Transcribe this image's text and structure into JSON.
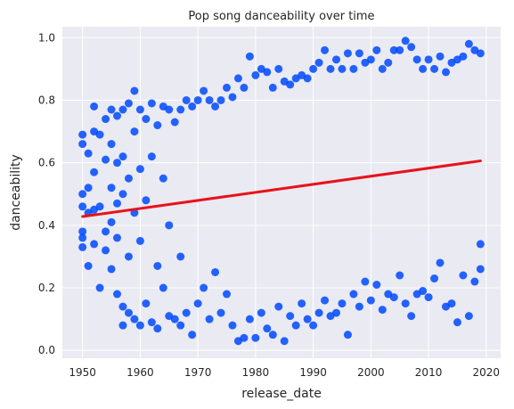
{
  "chart_data": {
    "type": "scatter",
    "title": "Pop song danceability over time",
    "xlabel": "release_date",
    "ylabel": "danceability",
    "xlim": [
      1946.5,
      2022.5
    ],
    "ylim": [
      -0.025,
      1.035
    ],
    "xticks": [
      1950,
      1960,
      1970,
      1980,
      1990,
      2000,
      2010,
      2020
    ],
    "xtick_labels": [
      "1950",
      "1960",
      "1970",
      "1980",
      "1990",
      "2000",
      "2010",
      "2020"
    ],
    "yticks": [
      0.0,
      0.2,
      0.4,
      0.6,
      0.8,
      1.0
    ],
    "ytick_labels": [
      "0.0",
      "0.2",
      "0.4",
      "0.6",
      "0.8",
      "1.0"
    ],
    "grid": true,
    "background": "#eaeaf2",
    "point_color": "#0049ff",
    "line_color": "#e8121a",
    "regression_line": {
      "x": [
        1950,
        2019
      ],
      "y": [
        0.428,
        0.606
      ]
    },
    "points": [
      [
        1950,
        0.69
      ],
      [
        1950,
        0.66
      ],
      [
        1950,
        0.5
      ],
      [
        1950,
        0.46
      ],
      [
        1950,
        0.38
      ],
      [
        1950,
        0.36
      ],
      [
        1950,
        0.33
      ],
      [
        1951,
        0.63
      ],
      [
        1951,
        0.52
      ],
      [
        1951,
        0.44
      ],
      [
        1951,
        0.27
      ],
      [
        1952,
        0.78
      ],
      [
        1952,
        0.7
      ],
      [
        1952,
        0.57
      ],
      [
        1952,
        0.45
      ],
      [
        1952,
        0.34
      ],
      [
        1953,
        0.69
      ],
      [
        1953,
        0.46
      ],
      [
        1953,
        0.2
      ],
      [
        1954,
        0.74
      ],
      [
        1954,
        0.61
      ],
      [
        1954,
        0.38
      ],
      [
        1954,
        0.32
      ],
      [
        1955,
        0.77
      ],
      [
        1955,
        0.66
      ],
      [
        1955,
        0.52
      ],
      [
        1955,
        0.41
      ],
      [
        1955,
        0.26
      ],
      [
        1956,
        0.75
      ],
      [
        1956,
        0.6
      ],
      [
        1956,
        0.47
      ],
      [
        1956,
        0.36
      ],
      [
        1956,
        0.18
      ],
      [
        1957,
        0.77
      ],
      [
        1957,
        0.62
      ],
      [
        1957,
        0.5
      ],
      [
        1957,
        0.14
      ],
      [
        1957,
        0.08
      ],
      [
        1958,
        0.79
      ],
      [
        1958,
        0.55
      ],
      [
        1958,
        0.3
      ],
      [
        1958,
        0.12
      ],
      [
        1959,
        0.83
      ],
      [
        1959,
        0.7
      ],
      [
        1959,
        0.44
      ],
      [
        1959,
        0.1
      ],
      [
        1960,
        0.77
      ],
      [
        1960,
        0.58
      ],
      [
        1960,
        0.35
      ],
      [
        1960,
        0.08
      ],
      [
        1961,
        0.74
      ],
      [
        1961,
        0.48
      ],
      [
        1961,
        0.15
      ],
      [
        1962,
        0.79
      ],
      [
        1962,
        0.62
      ],
      [
        1962,
        0.09
      ],
      [
        1963,
        0.72
      ],
      [
        1963,
        0.27
      ],
      [
        1963,
        0.07
      ],
      [
        1964,
        0.78
      ],
      [
        1964,
        0.55
      ],
      [
        1964,
        0.2
      ],
      [
        1965,
        0.77
      ],
      [
        1965,
        0.4
      ],
      [
        1965,
        0.11
      ],
      [
        1966,
        0.73
      ],
      [
        1966,
        0.1
      ],
      [
        1967,
        0.77
      ],
      [
        1967,
        0.3
      ],
      [
        1967,
        0.08
      ],
      [
        1968,
        0.8
      ],
      [
        1968,
        0.12
      ],
      [
        1969,
        0.78
      ],
      [
        1969,
        0.05
      ],
      [
        1970,
        0.8
      ],
      [
        1970,
        0.15
      ],
      [
        1971,
        0.83
      ],
      [
        1971,
        0.2
      ],
      [
        1972,
        0.8
      ],
      [
        1972,
        0.1
      ],
      [
        1973,
        0.78
      ],
      [
        1973,
        0.25
      ],
      [
        1974,
        0.8
      ],
      [
        1974,
        0.12
      ],
      [
        1975,
        0.84
      ],
      [
        1975,
        0.18
      ],
      [
        1976,
        0.81
      ],
      [
        1976,
        0.08
      ],
      [
        1977,
        0.87
      ],
      [
        1977,
        0.03
      ],
      [
        1978,
        0.84
      ],
      [
        1978,
        0.04
      ],
      [
        1979,
        0.94
      ],
      [
        1979,
        0.1
      ],
      [
        1980,
        0.88
      ],
      [
        1980,
        0.04
      ],
      [
        1981,
        0.9
      ],
      [
        1981,
        0.12
      ],
      [
        1982,
        0.89
      ],
      [
        1982,
        0.07
      ],
      [
        1983,
        0.84
      ],
      [
        1983,
        0.05
      ],
      [
        1984,
        0.9
      ],
      [
        1984,
        0.14
      ],
      [
        1985,
        0.86
      ],
      [
        1985,
        0.03
      ],
      [
        1986,
        0.85
      ],
      [
        1986,
        0.11
      ],
      [
        1987,
        0.87
      ],
      [
        1987,
        0.08
      ],
      [
        1988,
        0.88
      ],
      [
        1988,
        0.15
      ],
      [
        1989,
        0.87
      ],
      [
        1989,
        0.1
      ],
      [
        1990,
        0.9
      ],
      [
        1990,
        0.08
      ],
      [
        1991,
        0.92
      ],
      [
        1991,
        0.12
      ],
      [
        1992,
        0.96
      ],
      [
        1992,
        0.16
      ],
      [
        1993,
        0.9
      ],
      [
        1993,
        0.11
      ],
      [
        1994,
        0.93
      ],
      [
        1994,
        0.12
      ],
      [
        1995,
        0.9
      ],
      [
        1995,
        0.15
      ],
      [
        1996,
        0.95
      ],
      [
        1996,
        0.05
      ],
      [
        1997,
        0.9
      ],
      [
        1997,
        0.18
      ],
      [
        1998,
        0.95
      ],
      [
        1998,
        0.14
      ],
      [
        1999,
        0.92
      ],
      [
        1999,
        0.22
      ],
      [
        2000,
        0.93
      ],
      [
        2000,
        0.16
      ],
      [
        2001,
        0.96
      ],
      [
        2001,
        0.21
      ],
      [
        2002,
        0.9
      ],
      [
        2002,
        0.13
      ],
      [
        2003,
        0.92
      ],
      [
        2003,
        0.18
      ],
      [
        2004,
        0.96
      ],
      [
        2004,
        0.17
      ],
      [
        2005,
        0.96
      ],
      [
        2005,
        0.24
      ],
      [
        2006,
        0.99
      ],
      [
        2006,
        0.15
      ],
      [
        2007,
        0.97
      ],
      [
        2007,
        0.11
      ],
      [
        2008,
        0.93
      ],
      [
        2008,
        0.18
      ],
      [
        2009,
        0.9
      ],
      [
        2009,
        0.19
      ],
      [
        2010,
        0.93
      ],
      [
        2010,
        0.17
      ],
      [
        2011,
        0.9
      ],
      [
        2011,
        0.23
      ],
      [
        2012,
        0.94
      ],
      [
        2012,
        0.28
      ],
      [
        2013,
        0.89
      ],
      [
        2013,
        0.14
      ],
      [
        2014,
        0.92
      ],
      [
        2014,
        0.15
      ],
      [
        2015,
        0.93
      ],
      [
        2015,
        0.09
      ],
      [
        2016,
        0.94
      ],
      [
        2016,
        0.24
      ],
      [
        2017,
        0.98
      ],
      [
        2017,
        0.11
      ],
      [
        2018,
        0.96
      ],
      [
        2018,
        0.22
      ],
      [
        2019,
        0.95
      ],
      [
        2019,
        0.34
      ],
      [
        2019,
        0.26
      ]
    ]
  }
}
